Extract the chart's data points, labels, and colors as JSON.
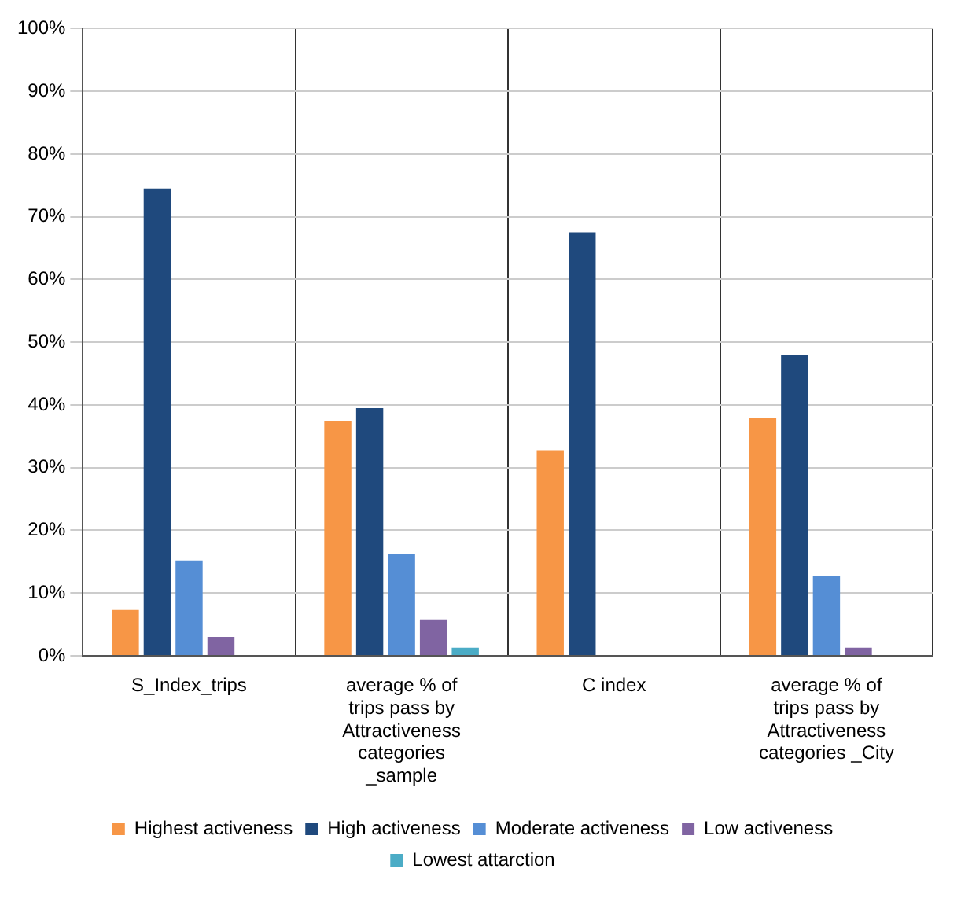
{
  "chart_data": {
    "type": "bar",
    "categories": [
      "S_Index_trips",
      "average % of trips pass by Attractiveness categories _sample",
      "C index",
      "average % of trips pass by Attractiveness categories _City"
    ],
    "series": [
      {
        "name": "Highest activeness",
        "color": "#f79646",
        "values": [
          7.3,
          37.5,
          32.8,
          38
        ]
      },
      {
        "name": "High activeness",
        "color": "#1f497d",
        "values": [
          74.5,
          39.5,
          67.5,
          48
        ]
      },
      {
        "name": "Moderate activeness",
        "color": "#558ed5",
        "values": [
          15.2,
          16.3,
          0,
          12.8
        ]
      },
      {
        "name": "Low activeness",
        "color": "#8064a2",
        "values": [
          3,
          5.8,
          0,
          1.3
        ]
      },
      {
        "name": "Lowest attarction",
        "color": "#4bacc6",
        "values": [
          0,
          1.3,
          0,
          0
        ]
      }
    ],
    "ylim": [
      0,
      100
    ],
    "yticks": [
      {
        "value": 0,
        "label": "0%"
      },
      {
        "value": 10,
        "label": "10%"
      },
      {
        "value": 20,
        "label": "20%"
      },
      {
        "value": 30,
        "label": "30%"
      },
      {
        "value": 40,
        "label": "40%"
      },
      {
        "value": 50,
        "label": "50%"
      },
      {
        "value": 60,
        "label": "60%"
      },
      {
        "value": 70,
        "label": "70%"
      },
      {
        "value": 80,
        "label": "80%"
      },
      {
        "value": 90,
        "label": "90%"
      },
      {
        "value": 100,
        "label": "100%"
      }
    ],
    "grid": true,
    "legend": "bottom"
  }
}
